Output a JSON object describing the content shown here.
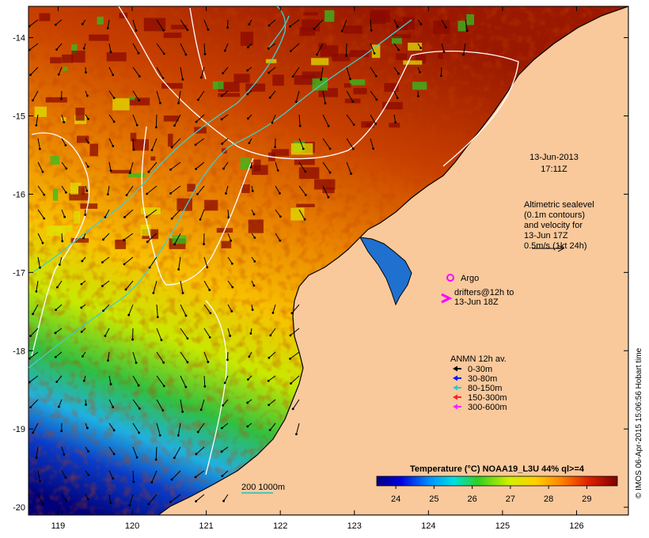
{
  "map": {
    "date_line": "13-Jun-2013",
    "time_line": "17:11Z",
    "altimetry_lines": [
      "Altimetric sealevel",
      "(0.1m contours)",
      "and velocity for",
      "13-Jun 17Z",
      "0.5m/s (1kt 24h)"
    ],
    "argo_label": "Argo",
    "drifters_lines": [
      "drifters@12h to",
      "13-Jun 18Z"
    ],
    "anmn_title": "ANMN 12h av.",
    "anmn_items": [
      {
        "label": "0-30m",
        "color": "#000000"
      },
      {
        "label": "30-80m",
        "color": "#1010ff"
      },
      {
        "label": "80-150m",
        "color": "#20d0d0"
      },
      {
        "label": "150-300m",
        "color": "#ff2020"
      },
      {
        "label": "300-600m",
        "color": "#ff20ff"
      }
    ],
    "bathymetry_label": "200  1000m",
    "credit": "© IMOS 06-Apr-2015 15:06:56 Hobart time",
    "colorbar_title": "Temperature (°C) NOAA19_L3U 44% ql>=4",
    "colorbar_ticks": [
      "24",
      "25",
      "26",
      "27",
      "28",
      "29"
    ],
    "colorbar_range": [
      23.5,
      29.8
    ],
    "lon_ticks": [
      "119",
      "120",
      "121",
      "122",
      "123",
      "124",
      "125",
      "126"
    ],
    "lat_ticks": [
      "-14",
      "-15",
      "-16",
      "-17",
      "-18",
      "-19",
      "-20"
    ],
    "lon_range": [
      118.6,
      126.7
    ],
    "lat_range": [
      -13.6,
      -20.1
    ],
    "colors": {
      "land": "#f9c99c",
      "cold": "#00007a",
      "warm": "#8b0000",
      "argo": "#ff00ff"
    }
  }
}
